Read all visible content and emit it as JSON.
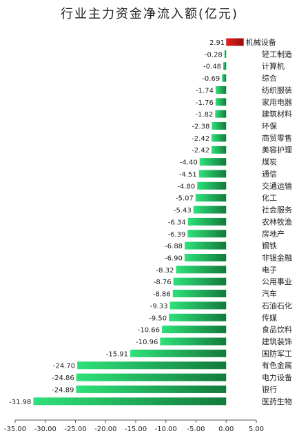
{
  "chart_data": {
    "type": "bar",
    "orientation": "horizontal",
    "title": "行业主力资金净流入额(亿元)",
    "xlabel": "",
    "ylabel": "",
    "xlim": [
      -35,
      5
    ],
    "xticks": [
      "-35.00",
      "-30.00",
      "-25.00",
      "-20.00",
      "-15.00",
      "-10.00",
      "-5.00",
      "0.00",
      "5.00"
    ],
    "grid": false,
    "legend": "none",
    "colors": {
      "positive": "#cc1111",
      "negative": "#1aa352"
    },
    "categories": [
      "机械设备",
      "轻工制造",
      "计算机",
      "综合",
      "纺织服装",
      "家用电器",
      "建筑材料",
      "环保",
      "商贸零售",
      "美容护理",
      "煤炭",
      "通信",
      "交通运输",
      "化工",
      "社会服务",
      "农林牧渔",
      "房地产",
      "钢铁",
      "非银金融",
      "电子",
      "公用事业",
      "汽车",
      "石油石化",
      "传媒",
      "食品饮料",
      "建筑装饰",
      "国防军工",
      "有色金属",
      "电力设备",
      "银行",
      "医药生物"
    ],
    "values": [
      2.91,
      -0.28,
      -0.48,
      -0.69,
      -1.74,
      -1.76,
      -1.82,
      -2.38,
      -2.42,
      -2.42,
      -4.4,
      -4.51,
      -4.8,
      -5.07,
      -5.43,
      -6.34,
      -6.39,
      -6.88,
      -6.9,
      -8.32,
      -8.76,
      -8.86,
      -9.33,
      -9.5,
      -10.66,
      -10.96,
      -15.91,
      -24.7,
      -24.86,
      -24.89,
      -31.98
    ],
    "value_labels": [
      "2.91",
      "-0.28",
      "-0.48",
      "-0.69",
      "-1.74",
      "-1.76",
      "-1.82",
      "-2.38",
      "-2.42",
      "-2.42",
      "-4.40",
      "-4.51",
      "-4.80",
      "-5.07",
      "-5.43",
      "-6.34",
      "-6.39",
      "-6.88",
      "-6.90",
      "-8.32",
      "-8.76",
      "-8.86",
      "-9.33",
      "-9.50",
      "-10.66",
      "-10.96",
      "-15.91",
      "-24.70",
      "-24.86",
      "-24.89",
      "-31.98"
    ]
  }
}
